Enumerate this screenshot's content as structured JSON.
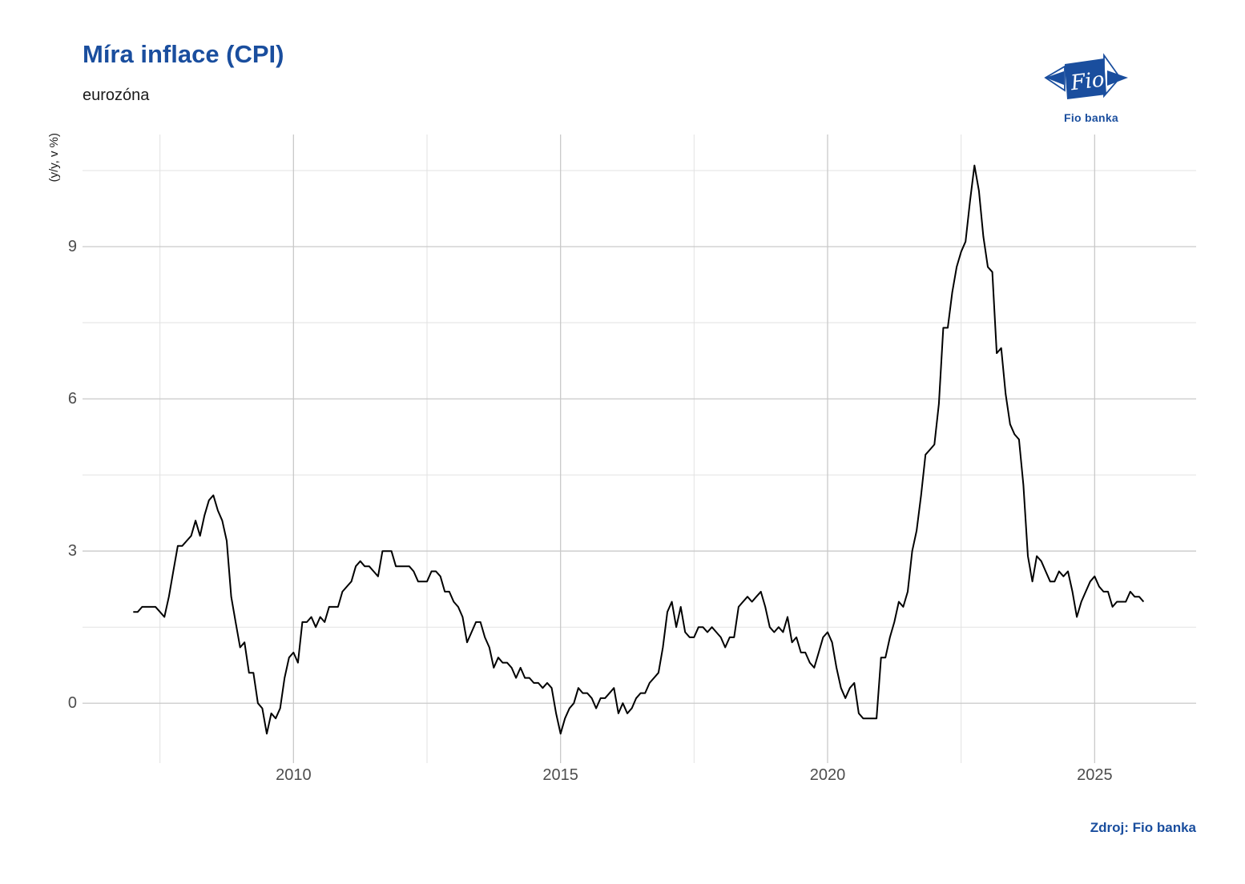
{
  "header": {
    "title": "Míra inflace (CPI)",
    "subtitle": "eurozóna"
  },
  "logo": {
    "mark_text": "Fio",
    "caption": "Fio banka"
  },
  "footer": {
    "source": "Zdroj: Fio banka"
  },
  "colors": {
    "brand_blue": "#1a4e9e",
    "line": "#000000",
    "grid_major": "#c9c9c9",
    "grid_minor": "#e2e2e2",
    "tick_label": "#4d4d4d",
    "text_dark": "#1a1a1a"
  },
  "chart_data": {
    "type": "line",
    "title": "Míra inflace (CPI)",
    "subtitle": "eurozóna",
    "xlabel": "",
    "ylabel": "(y/y, v %)",
    "legend": "none",
    "grid": true,
    "frequency": "monthly",
    "start": {
      "year": 2007,
      "month": 1
    },
    "end": {
      "year": 2025,
      "month": 12
    },
    "x_breaks": [
      2010,
      2015,
      2020,
      2025
    ],
    "x_minor_breaks": [
      2007.5,
      2012.5,
      2017.5,
      2022.5
    ],
    "y_breaks": [
      0,
      3,
      6,
      9
    ],
    "y_minor_breaks": [
      1.5,
      4.5,
      7.5,
      10.5
    ],
    "xlim": [
      2006.05,
      2026.9
    ],
    "ylim": [
      -1.18,
      11.21
    ],
    "series": [
      {
        "name": "Míra inflace (CPI), eurozóna, y/y v %",
        "values": [
          1.8,
          1.8,
          1.9,
          1.9,
          1.9,
          1.9,
          1.8,
          1.7,
          2.1,
          2.6,
          3.1,
          3.1,
          3.2,
          3.3,
          3.6,
          3.3,
          3.7,
          4.0,
          4.1,
          3.8,
          3.6,
          3.2,
          2.1,
          1.6,
          1.1,
          1.2,
          0.6,
          0.6,
          0.0,
          -0.1,
          -0.6,
          -0.2,
          -0.3,
          -0.1,
          0.5,
          0.9,
          1.0,
          0.8,
          1.6,
          1.6,
          1.7,
          1.5,
          1.7,
          1.6,
          1.9,
          1.9,
          1.9,
          2.2,
          2.3,
          2.4,
          2.7,
          2.8,
          2.7,
          2.7,
          2.6,
          2.5,
          3.0,
          3.0,
          3.0,
          2.7,
          2.7,
          2.7,
          2.7,
          2.6,
          2.4,
          2.4,
          2.4,
          2.6,
          2.6,
          2.5,
          2.2,
          2.2,
          2.0,
          1.9,
          1.7,
          1.2,
          1.4,
          1.6,
          1.6,
          1.3,
          1.1,
          0.7,
          0.9,
          0.8,
          0.8,
          0.7,
          0.5,
          0.7,
          0.5,
          0.5,
          0.4,
          0.4,
          0.3,
          0.4,
          0.3,
          -0.2,
          -0.6,
          -0.3,
          -0.1,
          0.0,
          0.3,
          0.2,
          0.2,
          0.1,
          -0.1,
          0.1,
          0.1,
          0.2,
          0.3,
          -0.2,
          0.0,
          -0.2,
          -0.1,
          0.1,
          0.2,
          0.2,
          0.4,
          0.5,
          0.6,
          1.1,
          1.8,
          2.0,
          1.5,
          1.9,
          1.4,
          1.3,
          1.3,
          1.5,
          1.5,
          1.4,
          1.5,
          1.4,
          1.3,
          1.1,
          1.3,
          1.3,
          1.9,
          2.0,
          2.1,
          2.0,
          2.1,
          2.2,
          1.9,
          1.5,
          1.4,
          1.5,
          1.4,
          1.7,
          1.2,
          1.3,
          1.0,
          1.0,
          0.8,
          0.7,
          1.0,
          1.3,
          1.4,
          1.2,
          0.7,
          0.3,
          0.1,
          0.3,
          0.4,
          -0.2,
          -0.3,
          -0.3,
          -0.3,
          -0.3,
          0.9,
          0.9,
          1.3,
          1.6,
          2.0,
          1.9,
          2.2,
          3.0,
          3.4,
          4.1,
          4.9,
          5.0,
          5.1,
          5.9,
          7.4,
          7.4,
          8.1,
          8.6,
          8.9,
          9.1,
          9.9,
          10.6,
          10.1,
          9.2,
          8.6,
          8.5,
          6.9,
          7.0,
          6.1,
          5.5,
          5.3,
          5.2,
          4.3,
          2.9,
          2.4,
          2.9,
          2.8,
          2.6,
          2.4,
          2.4,
          2.6,
          2.5,
          2.6,
          2.2,
          1.7,
          2.0,
          2.2,
          2.4,
          2.5,
          2.3,
          2.2,
          2.2,
          1.9,
          2.0,
          2.0,
          2.0,
          2.2,
          2.1,
          2.1,
          2.0
        ]
      }
    ]
  }
}
